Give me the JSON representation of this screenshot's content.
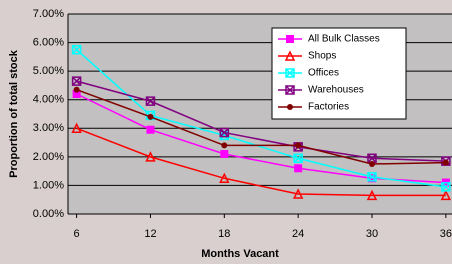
{
  "chart_data": {
    "type": "line",
    "xlabel": "Months Vacant",
    "ylabel": "Proportion of total stock",
    "x": [
      6,
      12,
      18,
      24,
      30,
      36
    ],
    "xlim": [
      5.3,
      36.5
    ],
    "xticks": [
      6,
      12,
      18,
      24,
      30,
      36
    ],
    "ylim": [
      0,
      7
    ],
    "yticks": [
      {
        "value": 0,
        "label": "0.00%"
      },
      {
        "value": 1,
        "label": "1.00%"
      },
      {
        "value": 2,
        "label": "2.00%"
      },
      {
        "value": 3,
        "label": "3.00%"
      },
      {
        "value": 4,
        "label": "4.00%"
      },
      {
        "value": 5,
        "label": "5.00%"
      },
      {
        "value": 6,
        "label": "6.00%"
      },
      {
        "value": 7,
        "label": "7.00%"
      }
    ],
    "grid": true,
    "legend": "upper right",
    "series": [
      {
        "name": "All Bulk Classes",
        "color": "#ff00ff",
        "marker": "square",
        "values": [
          4.2,
          2.95,
          2.1,
          1.6,
          1.25,
          1.1
        ]
      },
      {
        "name": "Shops",
        "color": "#ff0000",
        "marker": "triangle",
        "values": [
          3.0,
          2.0,
          1.25,
          0.7,
          0.65,
          0.65
        ]
      },
      {
        "name": "Offices",
        "color": "#00ffff",
        "marker": "x-square",
        "values": [
          5.75,
          3.45,
          2.75,
          1.95,
          1.3,
          0.95
        ]
      },
      {
        "name": "Warehouses",
        "color": "#800080",
        "marker": "square-x",
        "values": [
          4.65,
          3.95,
          2.85,
          2.35,
          1.95,
          1.85
        ]
      },
      {
        "name": "Factories",
        "color": "#800000",
        "marker": "circle",
        "values": [
          4.35,
          3.4,
          2.4,
          2.4,
          1.75,
          1.8
        ]
      }
    ]
  }
}
